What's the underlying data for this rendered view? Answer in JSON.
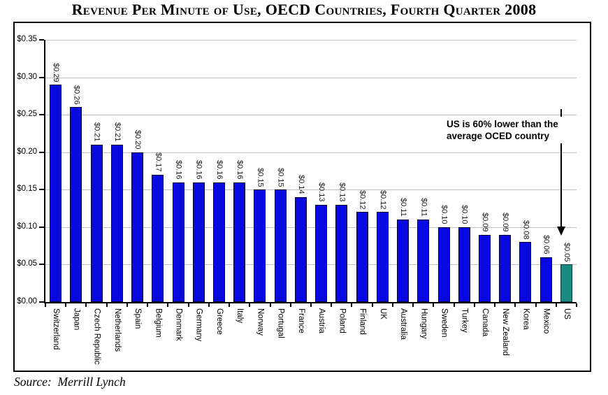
{
  "title": "Revenue Per Minute of Use, OECD Countries, Fourth Quarter 2008",
  "source": "Source:  Merrill Lynch",
  "annotation": {
    "line1": "US is 60% lower than the",
    "line2": "average OCED country"
  },
  "colors": {
    "bar": "#0808e0",
    "bar_border": "#00002a",
    "highlight_bar": "#1b8a80",
    "highlight_bar_border": "#063d38",
    "gridline": "#bfbfbf",
    "axis": "#000000"
  },
  "chart_data": {
    "type": "bar",
    "title": "Revenue Per Minute of Use, OECD Countries, Fourth Quarter 2008",
    "xlabel": "",
    "ylabel": "",
    "ylim": [
      0,
      0.35
    ],
    "grid": true,
    "legend": false,
    "highlight_category": "US",
    "y_ticks": [
      "$0.35",
      "$0.30",
      "$0.25",
      "$0.20",
      "$0.15",
      "$0.10",
      "$0.05",
      "$0.00"
    ],
    "categories": [
      "Switzerland",
      "Japan",
      "Czech Republic",
      "Netherlands",
      "Spain",
      "Belgium",
      "Denmark",
      "Germany",
      "Greece",
      "Italy",
      "Norway",
      "Portugal",
      "France",
      "Austria",
      "Poland",
      "Finland",
      "UK",
      "Australia",
      "Hungary",
      "Sweden",
      "Turkey",
      "Canada",
      "New Zealand",
      "Korea",
      "Mexico",
      "US"
    ],
    "values": [
      0.29,
      0.26,
      0.21,
      0.21,
      0.2,
      0.17,
      0.16,
      0.16,
      0.16,
      0.16,
      0.15,
      0.15,
      0.14,
      0.13,
      0.13,
      0.12,
      0.12,
      0.11,
      0.11,
      0.1,
      0.1,
      0.09,
      0.09,
      0.08,
      0.06,
      0.05
    ],
    "value_labels": [
      "$0.29",
      "$0.26",
      "$0.21",
      "$0.21",
      "$0.20",
      "$0.17",
      "$0.16",
      "$0.16",
      "$0.16",
      "$0.16",
      "$0.15",
      "$0.15",
      "$0.14",
      "$0.13",
      "$0.13",
      "$0.12",
      "$0.12",
      "$0.11",
      "$0.11",
      "$0.10",
      "$0.10",
      "$0.09",
      "$0.09",
      "$0.08",
      "$0.06",
      "$0.05"
    ],
    "annotation": "US is 60% lower than the average OCED country"
  }
}
